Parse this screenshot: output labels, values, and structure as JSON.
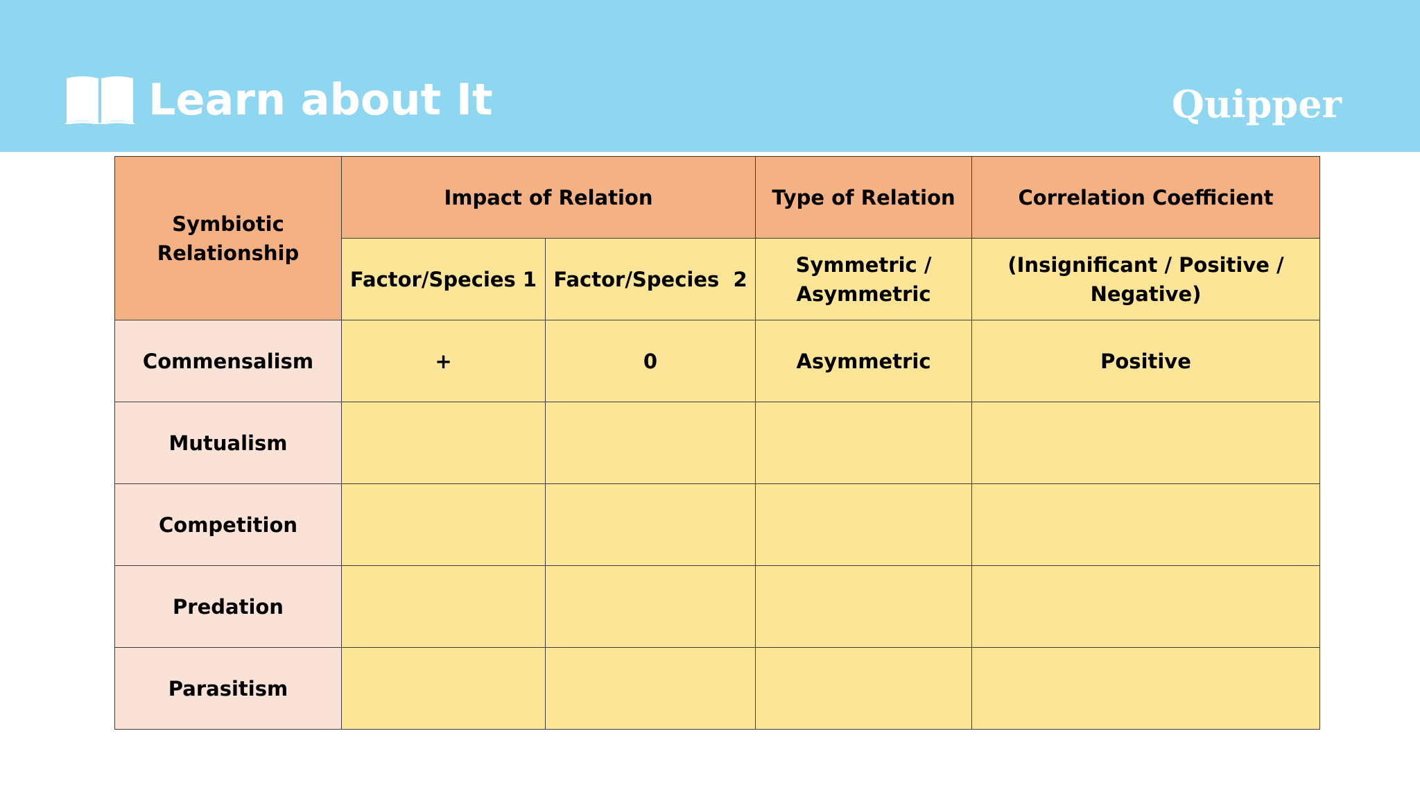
{
  "header": {
    "title": "Learn about It",
    "brand": "Quipper",
    "icon": "book-icon",
    "background_color": "#8fd6f1"
  },
  "table": {
    "headers": {
      "symbiotic_relationship": "Symbiotic Relationship",
      "impact_of_relation": "Impact of Relation",
      "type_of_relation": "Type of Relation",
      "correlation_coefficient": "Correlation Coefficient",
      "factor_species_1": "Factor/Species 1",
      "factor_species_2": "Factor/Species  2",
      "type_options": "Symmetric / Asymmetric",
      "correlation_options": "(Insignificant / Positive / Negative)"
    },
    "rows": [
      {
        "relationship": "Commensalism",
        "species1": "+",
        "species2": "0",
        "type": "Asymmetric",
        "correlation": "Positive"
      },
      {
        "relationship": "Mutualism",
        "species1": "",
        "species2": "",
        "type": "",
        "correlation": ""
      },
      {
        "relationship": "Competition",
        "species1": "",
        "species2": "",
        "type": "",
        "correlation": ""
      },
      {
        "relationship": "Predation",
        "species1": "",
        "species2": "",
        "type": "",
        "correlation": ""
      },
      {
        "relationship": "Parasitism",
        "species1": "",
        "species2": "",
        "type": "",
        "correlation": ""
      }
    ],
    "colors": {
      "header": "#f4b183",
      "cells": "#fde597",
      "row_labels": "#fbe2d6"
    }
  }
}
